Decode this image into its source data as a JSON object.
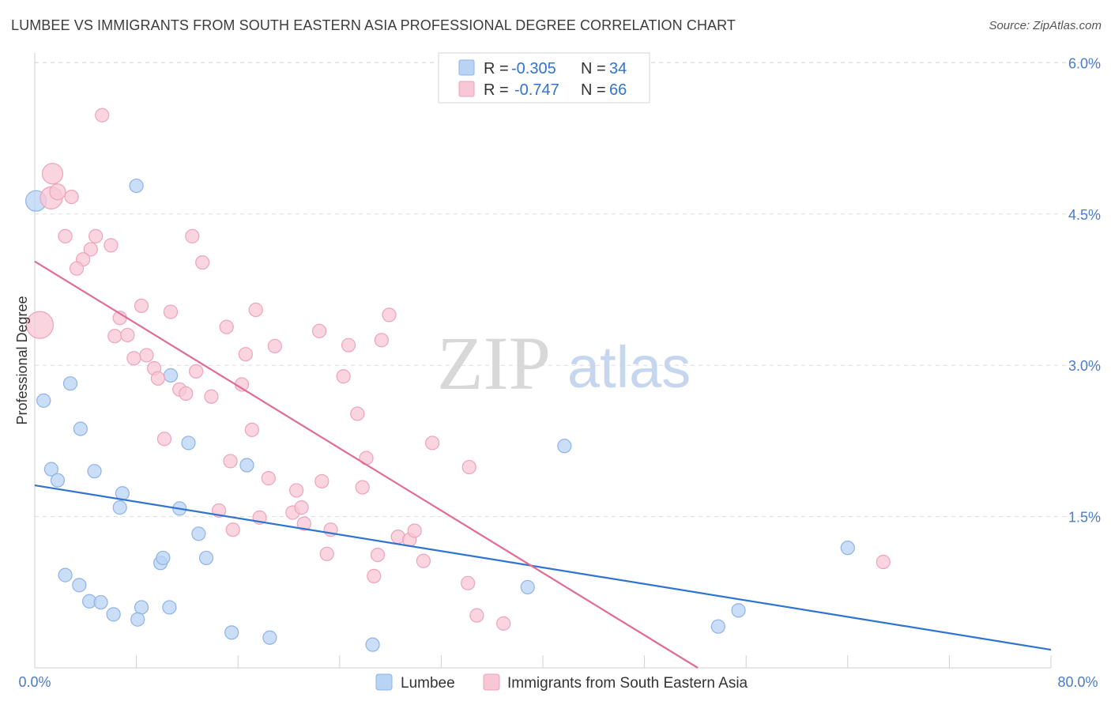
{
  "header": {
    "title": "LUMBEE VS IMMIGRANTS FROM SOUTH EASTERN ASIA PROFESSIONAL DEGREE CORRELATION CHART",
    "source": "Source: ZipAtlas.com"
  },
  "watermark": {
    "zip": "ZIP",
    "atlas": "atlas"
  },
  "colors": {
    "lumbee_fill": "#b9d3f4",
    "lumbee_stroke": "#8fb3e6",
    "lumbee_line": "#2f74d0",
    "immig_fill": "#f8c7d6",
    "immig_stroke": "#eda3bb",
    "immig_line": "#e06c96",
    "tick_text": "#4a7cc9",
    "grid": "#dddddd"
  },
  "stats": [
    {
      "r_label": "R =",
      "r_value": "-0.305",
      "n_label": "N =",
      "n_value": "34"
    },
    {
      "r_label": "R =",
      "r_value": "-0.747",
      "n_label": "N =",
      "n_value": "66"
    }
  ],
  "legend": {
    "items": [
      "Lumbee",
      "Immigrants from South Eastern Asia"
    ]
  },
  "chart_data": {
    "type": "scatter",
    "xlabel": "",
    "ylabel": "Professional Degree",
    "xlim": [
      0,
      80
    ],
    "ylim": [
      0,
      6.2
    ],
    "x_tick_labels": [
      "0.0%",
      "80.0%"
    ],
    "y_ticks": [
      1.5,
      3.0,
      4.5,
      6.0
    ],
    "y_tick_labels": [
      "1.5%",
      "3.0%",
      "4.5%",
      "6.0%"
    ],
    "grid": true,
    "legend_position": "bottom",
    "series": [
      {
        "name": "Lumbee",
        "points": [
          [
            0.1,
            4.63
          ],
          [
            8.0,
            4.78
          ],
          [
            0.7,
            2.65
          ],
          [
            2.8,
            2.82
          ],
          [
            3.6,
            2.37
          ],
          [
            1.3,
            1.97
          ],
          [
            1.8,
            1.86
          ],
          [
            4.7,
            1.95
          ],
          [
            6.9,
            1.73
          ],
          [
            6.7,
            1.59
          ],
          [
            10.7,
            2.9
          ],
          [
            12.1,
            2.23
          ],
          [
            16.7,
            2.01
          ],
          [
            11.4,
            1.58
          ],
          [
            12.9,
            1.33
          ],
          [
            9.9,
            1.04
          ],
          [
            10.1,
            1.09
          ],
          [
            13.5,
            1.09
          ],
          [
            2.4,
            0.92
          ],
          [
            3.5,
            0.82
          ],
          [
            4.3,
            0.66
          ],
          [
            5.2,
            0.65
          ],
          [
            6.2,
            0.53
          ],
          [
            8.4,
            0.6
          ],
          [
            10.6,
            0.6
          ],
          [
            8.1,
            0.48
          ],
          [
            15.5,
            0.35
          ],
          [
            18.5,
            0.3
          ],
          [
            26.6,
            0.23
          ],
          [
            38.8,
            0.8
          ],
          [
            41.7,
            2.2
          ],
          [
            64.0,
            1.19
          ],
          [
            55.4,
            0.57
          ],
          [
            53.8,
            0.41
          ]
        ],
        "trend": [
          [
            0,
            1.81
          ],
          [
            80,
            0.18
          ]
        ]
      },
      {
        "name": "Immigrants from South Eastern Asia",
        "points": [
          [
            0.4,
            3.4
          ],
          [
            1.3,
            4.66
          ],
          [
            1.4,
            4.9
          ],
          [
            1.8,
            4.72
          ],
          [
            2.9,
            4.67
          ],
          [
            5.3,
            5.48
          ],
          [
            2.4,
            4.28
          ],
          [
            4.8,
            4.28
          ],
          [
            6.0,
            4.19
          ],
          [
            4.4,
            4.15
          ],
          [
            3.8,
            4.05
          ],
          [
            3.3,
            3.96
          ],
          [
            12.4,
            4.28
          ],
          [
            13.2,
            4.02
          ],
          [
            8.4,
            3.59
          ],
          [
            10.7,
            3.53
          ],
          [
            6.7,
            3.47
          ],
          [
            6.3,
            3.29
          ],
          [
            7.3,
            3.3
          ],
          [
            17.4,
            3.55
          ],
          [
            15.1,
            3.38
          ],
          [
            22.4,
            3.34
          ],
          [
            8.8,
            3.1
          ],
          [
            7.8,
            3.07
          ],
          [
            16.6,
            3.11
          ],
          [
            18.9,
            3.19
          ],
          [
            24.7,
            3.2
          ],
          [
            27.3,
            3.25
          ],
          [
            9.4,
            2.97
          ],
          [
            12.7,
            2.94
          ],
          [
            9.7,
            2.87
          ],
          [
            11.4,
            2.76
          ],
          [
            11.9,
            2.72
          ],
          [
            13.9,
            2.69
          ],
          [
            16.3,
            2.81
          ],
          [
            24.3,
            2.89
          ],
          [
            25.4,
            2.52
          ],
          [
            17.1,
            2.36
          ],
          [
            10.2,
            2.27
          ],
          [
            15.4,
            2.05
          ],
          [
            26.1,
            2.08
          ],
          [
            31.3,
            2.23
          ],
          [
            34.2,
            1.99
          ],
          [
            18.4,
            1.88
          ],
          [
            22.6,
            1.85
          ],
          [
            25.8,
            1.79
          ],
          [
            20.6,
            1.76
          ],
          [
            14.5,
            1.56
          ],
          [
            17.7,
            1.49
          ],
          [
            20.3,
            1.54
          ],
          [
            21.0,
            1.59
          ],
          [
            21.2,
            1.43
          ],
          [
            23.3,
            1.37
          ],
          [
            15.6,
            1.37
          ],
          [
            28.6,
            1.3
          ],
          [
            29.5,
            1.27
          ],
          [
            29.9,
            1.36
          ],
          [
            23.0,
            1.13
          ],
          [
            27.0,
            1.12
          ],
          [
            30.6,
            1.06
          ],
          [
            26.7,
            0.91
          ],
          [
            34.1,
            0.84
          ],
          [
            34.8,
            0.52
          ],
          [
            36.9,
            0.44
          ],
          [
            66.8,
            1.05
          ],
          [
            27.9,
            3.5
          ]
        ],
        "trend": [
          [
            0,
            4.03
          ],
          [
            52.2,
            0.0
          ]
        ]
      }
    ]
  }
}
